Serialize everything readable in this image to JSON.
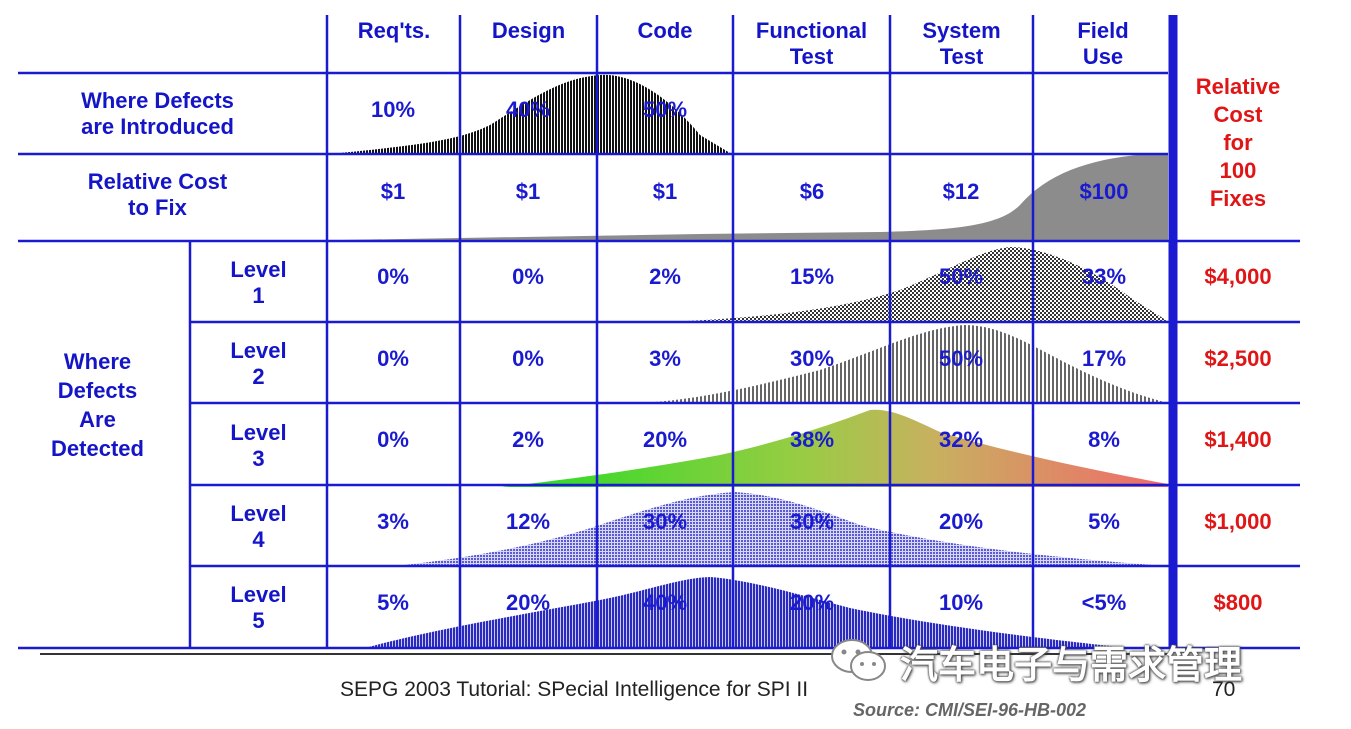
{
  "columns": [
    "Req'ts.",
    "Design",
    "Code",
    "Functional\nTest",
    "System\nTest",
    "Field\nUse"
  ],
  "introduced": {
    "label": "Where Defects\nare Introduced",
    "values": [
      "10%",
      "40%",
      "50%",
      "",
      "",
      ""
    ]
  },
  "cost": {
    "label": "Relative Cost\nto Fix",
    "values": [
      "$1",
      "$1",
      "$1",
      "$6",
      "$12",
      "$100"
    ]
  },
  "detected": {
    "label": "Where\nDefects\nAre\nDetected",
    "levels": [
      {
        "label": "Level\n1",
        "values": [
          "0%",
          "0%",
          "2%",
          "15%",
          "50%",
          "33%"
        ],
        "cost": "$4,000"
      },
      {
        "label": "Level\n2",
        "values": [
          "0%",
          "0%",
          "3%",
          "30%",
          "50%",
          "17%"
        ],
        "cost": "$2,500"
      },
      {
        "label": "Level\n3",
        "values": [
          "0%",
          "2%",
          "20%",
          "38%",
          "32%",
          "8%"
        ],
        "cost": "$1,400"
      },
      {
        "label": "Level\n4",
        "values": [
          "3%",
          "12%",
          "30%",
          "30%",
          "20%",
          "5%"
        ],
        "cost": "$1,000"
      },
      {
        "label": "Level\n5",
        "values": [
          "5%",
          "20%",
          "40%",
          "20%",
          "10%",
          "<5%"
        ],
        "cost": "$800"
      }
    ]
  },
  "relative_cost_header": "Relative\nCost\nfor\n100\nFixes",
  "footer": "SEPG 2003 Tutorial: SPecial Intelligence for SPI II",
  "page_number": "70",
  "source": "Source: CMI/SEI-96-HB-002",
  "watermark": "汽车电子与需求管理",
  "colors": {
    "grid": "#1a1ad0",
    "text": "#1515c8",
    "cost_red": "#e01515",
    "gray_curve": "#8a8a8a",
    "dark_curve": "#222222"
  }
}
